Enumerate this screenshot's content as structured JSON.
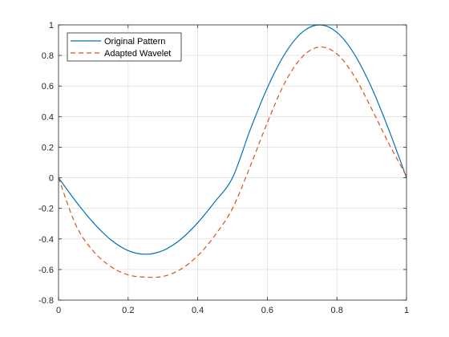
{
  "chart_data": {
    "type": "line",
    "title": "",
    "xlabel": "",
    "ylabel": "",
    "xlim": [
      0,
      1
    ],
    "ylim": [
      -0.8,
      1
    ],
    "grid": true,
    "legend_position": "top-left",
    "x_ticks": [
      0,
      0.2,
      0.4,
      0.6,
      0.8,
      1
    ],
    "x_tick_labels": [
      "0",
      "0.2",
      "0.4",
      "0.6",
      "0.8",
      "1"
    ],
    "y_ticks": [
      -0.8,
      -0.6,
      -0.4,
      -0.2,
      0,
      0.2,
      0.4,
      0.6,
      0.8,
      1
    ],
    "y_tick_labels": [
      "-0.8",
      "-0.6",
      "-0.4",
      "-0.2",
      "0",
      "0.2",
      "0.4",
      "0.6",
      "0.8",
      "1"
    ],
    "series": [
      {
        "name": "Original Pattern",
        "color": "#0072BD",
        "style": "solid",
        "x": [
          0,
          0.05,
          0.1,
          0.15,
          0.2,
          0.25,
          0.3,
          0.35,
          0.4,
          0.45,
          0.5,
          0.55,
          0.6,
          0.65,
          0.7,
          0.75,
          0.8,
          0.85,
          0.9,
          0.95,
          1.0
        ],
        "y": [
          0,
          -0.155,
          -0.294,
          -0.405,
          -0.476,
          -0.5,
          -0.476,
          -0.405,
          -0.294,
          -0.155,
          0,
          0.309,
          0.588,
          0.809,
          0.951,
          1.0,
          0.951,
          0.809,
          0.588,
          0.309,
          0
        ]
      },
      {
        "name": "Adapted Wavelet",
        "color": "#D95319",
        "style": "dashed",
        "x": [
          0,
          0.05,
          0.1,
          0.15,
          0.2,
          0.25,
          0.3,
          0.35,
          0.4,
          0.45,
          0.5,
          0.55,
          0.6,
          0.65,
          0.7,
          0.75,
          0.8,
          0.85,
          0.9,
          0.95,
          1.0
        ],
        "y": [
          0,
          -0.31,
          -0.48,
          -0.58,
          -0.635,
          -0.65,
          -0.645,
          -0.6,
          -0.51,
          -0.375,
          -0.2,
          0.07,
          0.36,
          0.62,
          0.79,
          0.855,
          0.81,
          0.665,
          0.45,
          0.22,
          0.01
        ]
      }
    ]
  }
}
